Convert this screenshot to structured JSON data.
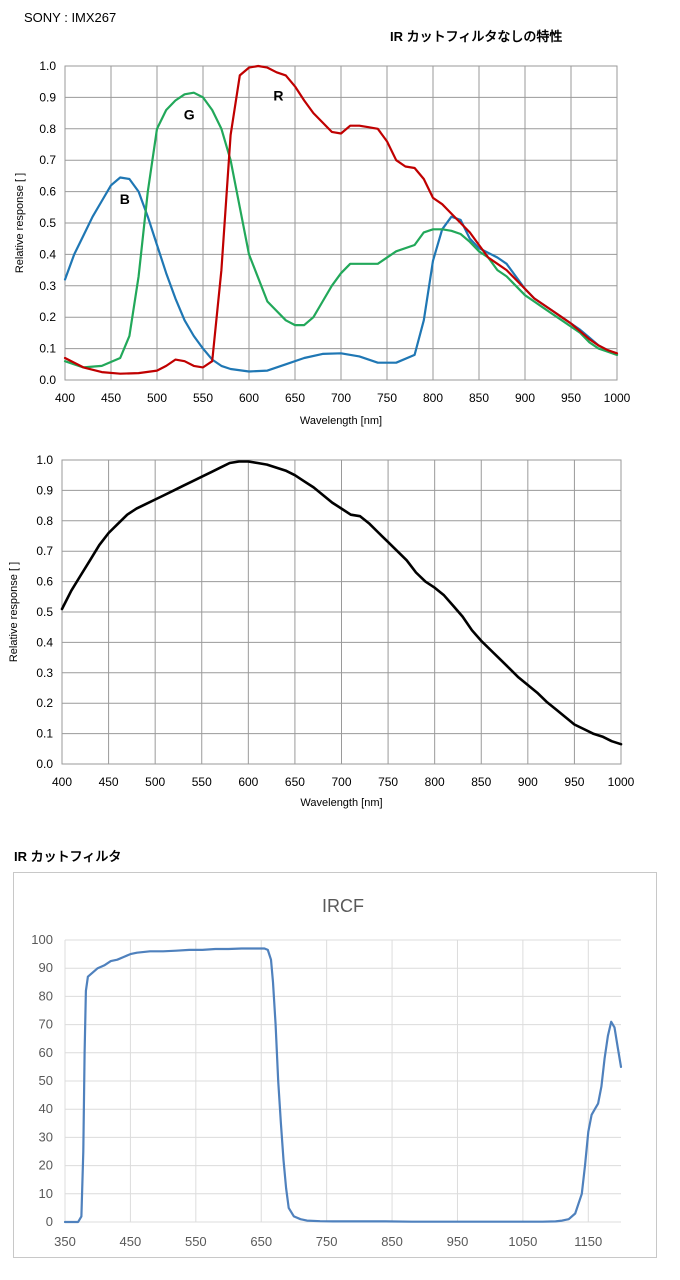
{
  "header": {
    "sensor": "SONY : IMX267",
    "condition": "IR カットフィルタなしの特性",
    "ircf_section": "IR カットフィルタ"
  },
  "chart_data": [
    {
      "type": "line",
      "xlabel": "Wavelength [nm]",
      "ylabel": "Relative response [ ]",
      "xlim": [
        400,
        1000
      ],
      "ylim": [
        0,
        1.0
      ],
      "xticks": [
        "400",
        "450",
        "500",
        "550",
        "600",
        "650",
        "700",
        "750",
        "800",
        "850",
        "900",
        "950",
        "1000"
      ],
      "yticks": [
        "0.0",
        "0.1",
        "0.2",
        "0.3",
        "0.4",
        "0.5",
        "0.6",
        "0.7",
        "0.8",
        "0.9",
        "1.0"
      ],
      "grid": true,
      "series": [
        {
          "name": "B",
          "color": "#1f77b4",
          "label_at": [
            465,
            0.56
          ],
          "x": [
            400,
            410,
            420,
            430,
            440,
            450,
            460,
            470,
            480,
            490,
            500,
            510,
            520,
            530,
            540,
            550,
            560,
            570,
            580,
            600,
            620,
            640,
            660,
            680,
            700,
            720,
            740,
            760,
            780,
            790,
            800,
            810,
            820,
            830,
            840,
            850,
            860,
            870,
            880,
            890,
            900,
            910,
            920,
            930,
            940,
            950,
            960,
            970,
            980,
            990,
            1000
          ],
          "y": [
            0.32,
            0.4,
            0.46,
            0.52,
            0.57,
            0.62,
            0.645,
            0.64,
            0.6,
            0.52,
            0.43,
            0.34,
            0.26,
            0.19,
            0.14,
            0.1,
            0.065,
            0.045,
            0.035,
            0.027,
            0.03,
            0.05,
            0.07,
            0.083,
            0.085,
            0.075,
            0.055,
            0.055,
            0.08,
            0.19,
            0.38,
            0.48,
            0.52,
            0.51,
            0.45,
            0.42,
            0.405,
            0.39,
            0.37,
            0.33,
            0.29,
            0.26,
            0.24,
            0.22,
            0.2,
            0.18,
            0.16,
            0.135,
            0.11,
            0.095,
            0.08
          ]
        },
        {
          "name": "G",
          "color": "#22a85a",
          "label_at": [
            535,
            0.83
          ],
          "x": [
            400,
            420,
            440,
            460,
            470,
            480,
            490,
            500,
            510,
            520,
            530,
            540,
            550,
            560,
            570,
            580,
            590,
            600,
            620,
            640,
            650,
            660,
            670,
            680,
            690,
            700,
            710,
            720,
            740,
            760,
            780,
            790,
            800,
            810,
            820,
            830,
            840,
            850,
            860,
            870,
            880,
            890,
            900,
            910,
            920,
            930,
            940,
            950,
            960,
            970,
            980,
            990,
            1000
          ],
          "y": [
            0.06,
            0.04,
            0.045,
            0.07,
            0.14,
            0.33,
            0.6,
            0.8,
            0.86,
            0.89,
            0.91,
            0.915,
            0.9,
            0.86,
            0.8,
            0.7,
            0.55,
            0.4,
            0.25,
            0.19,
            0.175,
            0.175,
            0.2,
            0.25,
            0.3,
            0.34,
            0.37,
            0.37,
            0.37,
            0.41,
            0.43,
            0.47,
            0.48,
            0.48,
            0.475,
            0.465,
            0.44,
            0.41,
            0.39,
            0.35,
            0.33,
            0.3,
            0.27,
            0.25,
            0.23,
            0.21,
            0.19,
            0.17,
            0.15,
            0.12,
            0.1,
            0.09,
            0.08
          ]
        },
        {
          "name": "R",
          "color": "#c00000",
          "label_at": [
            632,
            0.89
          ],
          "x": [
            400,
            420,
            440,
            460,
            480,
            500,
            510,
            520,
            530,
            540,
            550,
            560,
            570,
            580,
            590,
            600,
            610,
            620,
            630,
            640,
            650,
            660,
            670,
            680,
            690,
            700,
            710,
            720,
            730,
            740,
            750,
            760,
            770,
            780,
            790,
            800,
            810,
            820,
            830,
            840,
            850,
            860,
            870,
            880,
            890,
            900,
            910,
            920,
            930,
            940,
            950,
            960,
            970,
            980,
            990,
            1000
          ],
          "y": [
            0.07,
            0.04,
            0.025,
            0.02,
            0.022,
            0.03,
            0.045,
            0.065,
            0.06,
            0.045,
            0.04,
            0.06,
            0.35,
            0.78,
            0.97,
            0.995,
            1.0,
            0.995,
            0.98,
            0.97,
            0.935,
            0.89,
            0.85,
            0.82,
            0.79,
            0.785,
            0.81,
            0.81,
            0.805,
            0.8,
            0.76,
            0.7,
            0.68,
            0.675,
            0.64,
            0.58,
            0.56,
            0.53,
            0.5,
            0.47,
            0.43,
            0.39,
            0.37,
            0.35,
            0.32,
            0.29,
            0.26,
            0.24,
            0.22,
            0.2,
            0.18,
            0.155,
            0.13,
            0.11,
            0.095,
            0.085
          ]
        }
      ]
    },
    {
      "type": "line",
      "xlabel": "Wavelength [nm]",
      "ylabel": "Relative response [ ]",
      "xlim": [
        400,
        1000
      ],
      "ylim": [
        0,
        1.0
      ],
      "xticks": [
        "400",
        "450",
        "500",
        "550",
        "600",
        "650",
        "700",
        "750",
        "800",
        "850",
        "900",
        "950",
        "1000"
      ],
      "yticks": [
        "0.0",
        "0.1",
        "0.2",
        "0.3",
        "0.4",
        "0.5",
        "0.6",
        "0.7",
        "0.8",
        "0.9",
        "1.0"
      ],
      "grid": true,
      "series": [
        {
          "color": "#000000",
          "x": [
            400,
            410,
            420,
            430,
            440,
            450,
            460,
            470,
            480,
            490,
            500,
            510,
            520,
            530,
            540,
            550,
            560,
            570,
            580,
            590,
            600,
            610,
            620,
            630,
            640,
            650,
            660,
            670,
            680,
            690,
            700,
            710,
            720,
            730,
            740,
            750,
            760,
            770,
            780,
            790,
            800,
            810,
            820,
            830,
            840,
            850,
            860,
            870,
            880,
            890,
            900,
            910,
            920,
            930,
            940,
            950,
            960,
            970,
            980,
            990,
            1000
          ],
          "y": [
            0.51,
            0.57,
            0.62,
            0.67,
            0.72,
            0.76,
            0.79,
            0.82,
            0.84,
            0.855,
            0.87,
            0.885,
            0.9,
            0.915,
            0.93,
            0.945,
            0.96,
            0.975,
            0.99,
            0.995,
            0.995,
            0.99,
            0.985,
            0.975,
            0.965,
            0.95,
            0.93,
            0.91,
            0.885,
            0.86,
            0.84,
            0.82,
            0.815,
            0.79,
            0.76,
            0.73,
            0.7,
            0.67,
            0.63,
            0.6,
            0.58,
            0.555,
            0.52,
            0.485,
            0.44,
            0.405,
            0.375,
            0.345,
            0.315,
            0.285,
            0.26,
            0.235,
            0.205,
            0.18,
            0.155,
            0.13,
            0.115,
            0.1,
            0.09,
            0.075,
            0.065
          ]
        }
      ]
    },
    {
      "type": "line",
      "title": "IRCF",
      "xlim": [
        350,
        1200
      ],
      "ylim": [
        0,
        100
      ],
      "xticks": [
        "350",
        "450",
        "550",
        "650",
        "750",
        "850",
        "950",
        "1050",
        "1150"
      ],
      "yticks": [
        "0",
        "10",
        "20",
        "30",
        "40",
        "50",
        "60",
        "70",
        "80",
        "90",
        "100"
      ],
      "grid": true,
      "series": [
        {
          "color": "#4f81bd",
          "x": [
            350,
            370,
            375,
            378,
            380,
            382,
            385,
            390,
            400,
            410,
            420,
            430,
            440,
            450,
            460,
            480,
            500,
            520,
            540,
            560,
            580,
            600,
            620,
            640,
            655,
            660,
            665,
            668,
            672,
            676,
            680,
            684,
            688,
            692,
            700,
            710,
            720,
            740,
            760,
            800,
            840,
            880,
            920,
            960,
            1000,
            1040,
            1080,
            1100,
            1110,
            1120,
            1130,
            1140,
            1145,
            1150,
            1155,
            1160,
            1165,
            1170,
            1175,
            1180,
            1185,
            1190,
            1195,
            1200
          ],
          "y": [
            0,
            0,
            2,
            25,
            60,
            82,
            87,
            88,
            90,
            91,
            92.5,
            93,
            94,
            95,
            95.5,
            96,
            96,
            96.2,
            96.5,
            96.5,
            96.8,
            96.8,
            97,
            97,
            97,
            96.5,
            93,
            85,
            70,
            50,
            35,
            22,
            12,
            5,
            2,
            1,
            0.5,
            0.3,
            0.2,
            0.2,
            0.2,
            0.1,
            0.1,
            0.1,
            0.1,
            0.1,
            0.1,
            0.2,
            0.5,
            1,
            3,
            10,
            20,
            32,
            38,
            40,
            42,
            48,
            58,
            66,
            71,
            69,
            62,
            55
          ]
        }
      ]
    }
  ]
}
